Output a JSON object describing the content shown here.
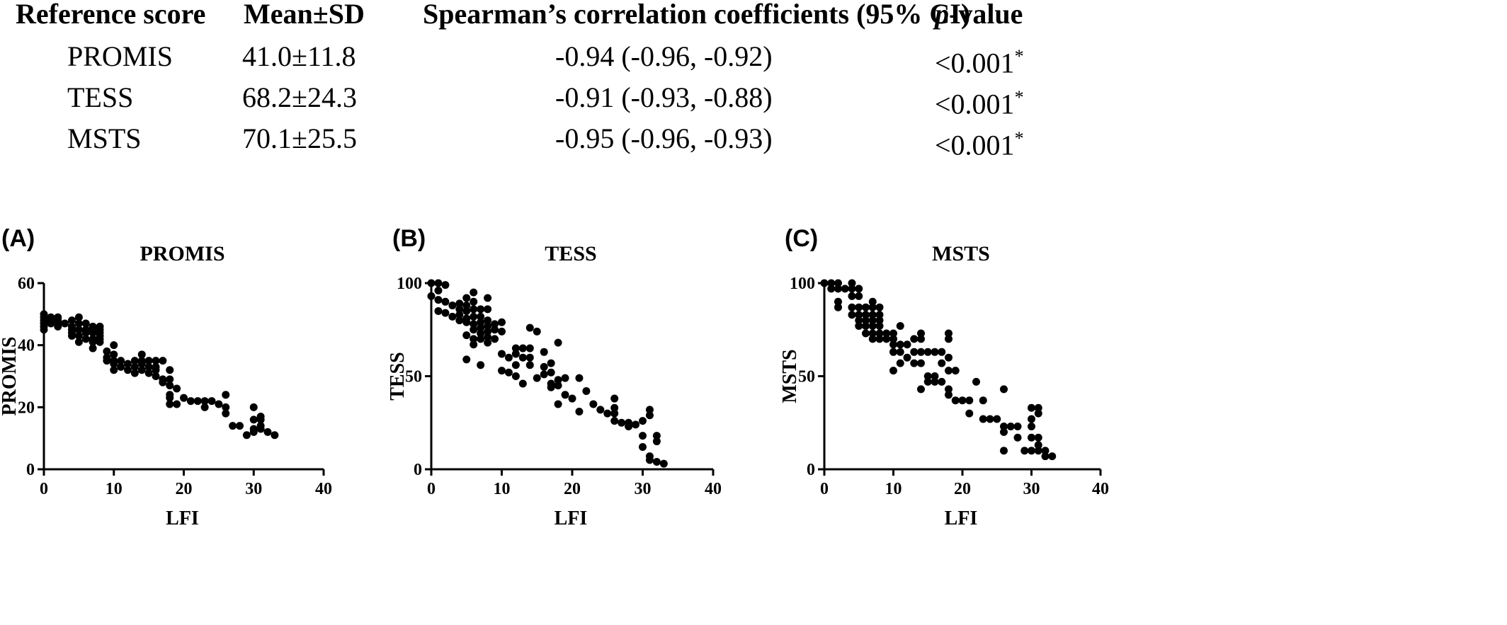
{
  "table": {
    "headers": [
      "Reference score",
      "Mean±SD",
      "Spearman’s correlation coefficients (95% CI)",
      "p",
      "-value"
    ],
    "rows": [
      {
        "name": "PROMIS",
        "mean_sd": "41.0±11.8",
        "rho": "-0.94 (-0.96, -0.92)",
        "p": "<0.001",
        "star": "*"
      },
      {
        "name": "TESS",
        "mean_sd": "68.2±24.3",
        "rho": "-0.91 (-0.93, -0.88)",
        "p": "<0.001",
        "star": "*"
      },
      {
        "name": "MSTS",
        "mean_sd": "70.1±25.5",
        "rho": "-0.95 (-0.96, -0.93)",
        "p": "<0.001",
        "star": "*"
      }
    ]
  },
  "chart_data": [
    {
      "type": "scatter",
      "panel_label": "(A)",
      "title": "PROMIS",
      "xlabel": "LFI",
      "ylabel": "PROMIS",
      "xlim": [
        0,
        40
      ],
      "ylim": [
        0,
        60
      ],
      "xticks": [
        0,
        10,
        20,
        30,
        40
      ],
      "yticks": [
        0,
        20,
        40,
        60
      ],
      "points": [
        [
          0,
          50
        ],
        [
          0,
          49
        ],
        [
          0,
          48
        ],
        [
          0,
          47
        ],
        [
          0,
          46
        ],
        [
          0,
          45
        ],
        [
          1,
          49
        ],
        [
          1,
          48
        ],
        [
          1,
          47
        ],
        [
          2,
          49
        ],
        [
          2,
          48
        ],
        [
          2,
          47
        ],
        [
          2,
          46
        ],
        [
          3,
          47
        ],
        [
          4,
          48
        ],
        [
          4,
          46
        ],
        [
          4,
          45
        ],
        [
          4,
          44
        ],
        [
          4,
          43
        ],
        [
          5,
          49
        ],
        [
          5,
          47
        ],
        [
          5,
          45
        ],
        [
          5,
          43
        ],
        [
          5,
          41
        ],
        [
          6,
          47
        ],
        [
          6,
          45
        ],
        [
          6,
          44
        ],
        [
          6,
          42
        ],
        [
          7,
          46
        ],
        [
          7,
          45
        ],
        [
          7,
          44
        ],
        [
          7,
          42
        ],
        [
          7,
          41
        ],
        [
          7,
          39
        ],
        [
          8,
          46
        ],
        [
          8,
          45
        ],
        [
          8,
          44
        ],
        [
          8,
          43
        ],
        [
          8,
          42
        ],
        [
          8,
          41
        ],
        [
          9,
          38
        ],
        [
          9,
          36
        ],
        [
          9,
          35
        ],
        [
          10,
          40
        ],
        [
          10,
          37
        ],
        [
          10,
          35
        ],
        [
          10,
          34
        ],
        [
          10,
          32
        ],
        [
          11,
          35
        ],
        [
          11,
          33
        ],
        [
          12,
          34
        ],
        [
          12,
          32
        ],
        [
          13,
          35
        ],
        [
          13,
          33
        ],
        [
          13,
          31
        ],
        [
          14,
          37
        ],
        [
          14,
          35
        ],
        [
          14,
          34
        ],
        [
          14,
          32
        ],
        [
          15,
          35
        ],
        [
          15,
          33
        ],
        [
          15,
          31
        ],
        [
          16,
          35
        ],
        [
          16,
          33
        ],
        [
          16,
          32
        ],
        [
          16,
          30
        ],
        [
          17,
          35
        ],
        [
          17,
          29
        ],
        [
          17,
          28
        ],
        [
          18,
          32
        ],
        [
          18,
          29
        ],
        [
          18,
          27
        ],
        [
          18,
          24
        ],
        [
          18,
          23
        ],
        [
          18,
          21
        ],
        [
          19,
          26
        ],
        [
          19,
          21
        ],
        [
          20,
          23
        ],
        [
          21,
          22
        ],
        [
          22,
          22
        ],
        [
          23,
          22
        ],
        [
          23,
          20
        ],
        [
          24,
          22
        ],
        [
          25,
          21
        ],
        [
          26,
          24
        ],
        [
          26,
          20
        ],
        [
          26,
          18
        ],
        [
          27,
          14
        ],
        [
          28,
          14
        ],
        [
          29,
          11
        ],
        [
          30,
          20
        ],
        [
          30,
          16
        ],
        [
          30,
          13
        ],
        [
          30,
          12
        ],
        [
          31,
          17
        ],
        [
          31,
          16
        ],
        [
          31,
          14
        ],
        [
          31,
          13
        ],
        [
          32,
          12
        ],
        [
          33,
          11
        ]
      ]
    },
    {
      "type": "scatter",
      "panel_label": "(B)",
      "title": "TESS",
      "xlabel": "LFI",
      "ylabel": "TESS",
      "xlim": [
        0,
        40
      ],
      "ylim": [
        0,
        100
      ],
      "xticks": [
        0,
        10,
        20,
        30,
        40
      ],
      "yticks": [
        0,
        50,
        100
      ],
      "points": [
        [
          0,
          100
        ],
        [
          0,
          93
        ],
        [
          1,
          100
        ],
        [
          1,
          96
        ],
        [
          1,
          91
        ],
        [
          1,
          85
        ],
        [
          2,
          99
        ],
        [
          2,
          90
        ],
        [
          2,
          84
        ],
        [
          3,
          88
        ],
        [
          3,
          82
        ],
        [
          4,
          89
        ],
        [
          4,
          86
        ],
        [
          4,
          83
        ],
        [
          4,
          80
        ],
        [
          5,
          92
        ],
        [
          5,
          88
        ],
        [
          5,
          85
        ],
        [
          5,
          81
        ],
        [
          5,
          79
        ],
        [
          5,
          72
        ],
        [
          5,
          59
        ],
        [
          6,
          95
        ],
        [
          6,
          90
        ],
        [
          6,
          86
        ],
        [
          6,
          82
        ],
        [
          6,
          78
        ],
        [
          6,
          75
        ],
        [
          6,
          70
        ],
        [
          6,
          67
        ],
        [
          7,
          86
        ],
        [
          7,
          82
        ],
        [
          7,
          79
        ],
        [
          7,
          76
        ],
        [
          7,
          73
        ],
        [
          7,
          70
        ],
        [
          7,
          56
        ],
        [
          8,
          92
        ],
        [
          8,
          86
        ],
        [
          8,
          80
        ],
        [
          8,
          77
        ],
        [
          8,
          74
        ],
        [
          8,
          71
        ],
        [
          8,
          68
        ],
        [
          9,
          78
        ],
        [
          9,
          75
        ],
        [
          9,
          70
        ],
        [
          10,
          79
        ],
        [
          10,
          74
        ],
        [
          10,
          62
        ],
        [
          10,
          53
        ],
        [
          11,
          60
        ],
        [
          11,
          52
        ],
        [
          12,
          65
        ],
        [
          12,
          62
        ],
        [
          12,
          56
        ],
        [
          12,
          50
        ],
        [
          13,
          65
        ],
        [
          13,
          60
        ],
        [
          13,
          46
        ],
        [
          14,
          76
        ],
        [
          14,
          65
        ],
        [
          14,
          60
        ],
        [
          14,
          56
        ],
        [
          15,
          74
        ],
        [
          15,
          49
        ],
        [
          16,
          63
        ],
        [
          16,
          55
        ],
        [
          16,
          51
        ],
        [
          17,
          57
        ],
        [
          17,
          52
        ],
        [
          17,
          46
        ],
        [
          17,
          44
        ],
        [
          18,
          68
        ],
        [
          18,
          48
        ],
        [
          18,
          45
        ],
        [
          18,
          35
        ],
        [
          19,
          49
        ],
        [
          19,
          40
        ],
        [
          20,
          38
        ],
        [
          21,
          49
        ],
        [
          21,
          31
        ],
        [
          22,
          42
        ],
        [
          23,
          35
        ],
        [
          24,
          32
        ],
        [
          25,
          30
        ],
        [
          26,
          38
        ],
        [
          26,
          33
        ],
        [
          26,
          30
        ],
        [
          26,
          26
        ],
        [
          27,
          25
        ],
        [
          28,
          25
        ],
        [
          28,
          23
        ],
        [
          29,
          24
        ],
        [
          30,
          26
        ],
        [
          30,
          18
        ],
        [
          30,
          12
        ],
        [
          31,
          32
        ],
        [
          31,
          29
        ],
        [
          31,
          7
        ],
        [
          31,
          5
        ],
        [
          32,
          18
        ],
        [
          32,
          15
        ],
        [
          32,
          4
        ],
        [
          33,
          3
        ]
      ]
    },
    {
      "type": "scatter",
      "panel_label": "(C)",
      "title": "MSTS",
      "xlabel": "LFI",
      "ylabel": "MSTS",
      "xlim": [
        0,
        40
      ],
      "ylim": [
        0,
        100
      ],
      "xticks": [
        0,
        10,
        20,
        30,
        40
      ],
      "yticks": [
        0,
        50,
        100
      ],
      "points": [
        [
          0,
          100
        ],
        [
          1,
          100
        ],
        [
          1,
          97
        ],
        [
          2,
          100
        ],
        [
          2,
          97
        ],
        [
          2,
          90
        ],
        [
          2,
          87
        ],
        [
          3,
          97
        ],
        [
          4,
          100
        ],
        [
          4,
          97
        ],
        [
          4,
          93
        ],
        [
          4,
          87
        ],
        [
          4,
          83
        ],
        [
          5,
          97
        ],
        [
          5,
          93
        ],
        [
          5,
          87
        ],
        [
          5,
          83
        ],
        [
          5,
          80
        ],
        [
          5,
          77
        ],
        [
          6,
          87
        ],
        [
          6,
          83
        ],
        [
          6,
          80
        ],
        [
          6,
          77
        ],
        [
          6,
          73
        ],
        [
          7,
          90
        ],
        [
          7,
          87
        ],
        [
          7,
          83
        ],
        [
          7,
          80
        ],
        [
          7,
          77
        ],
        [
          7,
          73
        ],
        [
          7,
          70
        ],
        [
          8,
          87
        ],
        [
          8,
          83
        ],
        [
          8,
          80
        ],
        [
          8,
          77
        ],
        [
          8,
          73
        ],
        [
          8,
          70
        ],
        [
          9,
          73
        ],
        [
          9,
          70
        ],
        [
          10,
          73
        ],
        [
          10,
          70
        ],
        [
          10,
          67
        ],
        [
          10,
          63
        ],
        [
          10,
          53
        ],
        [
          11,
          77
        ],
        [
          11,
          67
        ],
        [
          11,
          63
        ],
        [
          11,
          57
        ],
        [
          12,
          67
        ],
        [
          12,
          60
        ],
        [
          13,
          70
        ],
        [
          13,
          63
        ],
        [
          13,
          57
        ],
        [
          14,
          73
        ],
        [
          14,
          70
        ],
        [
          14,
          63
        ],
        [
          14,
          57
        ],
        [
          14,
          43
        ],
        [
          15,
          63
        ],
        [
          15,
          50
        ],
        [
          15,
          47
        ],
        [
          16,
          63
        ],
        [
          16,
          50
        ],
        [
          16,
          47
        ],
        [
          17,
          63
        ],
        [
          17,
          57
        ],
        [
          17,
          47
        ],
        [
          18,
          73
        ],
        [
          18,
          70
        ],
        [
          18,
          60
        ],
        [
          18,
          53
        ],
        [
          18,
          43
        ],
        [
          18,
          40
        ],
        [
          19,
          53
        ],
        [
          19,
          37
        ],
        [
          20,
          37
        ],
        [
          21,
          37
        ],
        [
          21,
          30
        ],
        [
          22,
          47
        ],
        [
          23,
          37
        ],
        [
          23,
          27
        ],
        [
          24,
          27
        ],
        [
          25,
          27
        ],
        [
          26,
          43
        ],
        [
          26,
          23
        ],
        [
          26,
          20
        ],
        [
          26,
          10
        ],
        [
          27,
          23
        ],
        [
          28,
          23
        ],
        [
          28,
          17
        ],
        [
          29,
          10
        ],
        [
          30,
          33
        ],
        [
          30,
          27
        ],
        [
          30,
          23
        ],
        [
          30,
          17
        ],
        [
          30,
          10
        ],
        [
          31,
          33
        ],
        [
          31,
          30
        ],
        [
          31,
          17
        ],
        [
          31,
          13
        ],
        [
          31,
          10
        ],
        [
          32,
          10
        ],
        [
          32,
          7
        ],
        [
          33,
          7
        ]
      ]
    }
  ]
}
